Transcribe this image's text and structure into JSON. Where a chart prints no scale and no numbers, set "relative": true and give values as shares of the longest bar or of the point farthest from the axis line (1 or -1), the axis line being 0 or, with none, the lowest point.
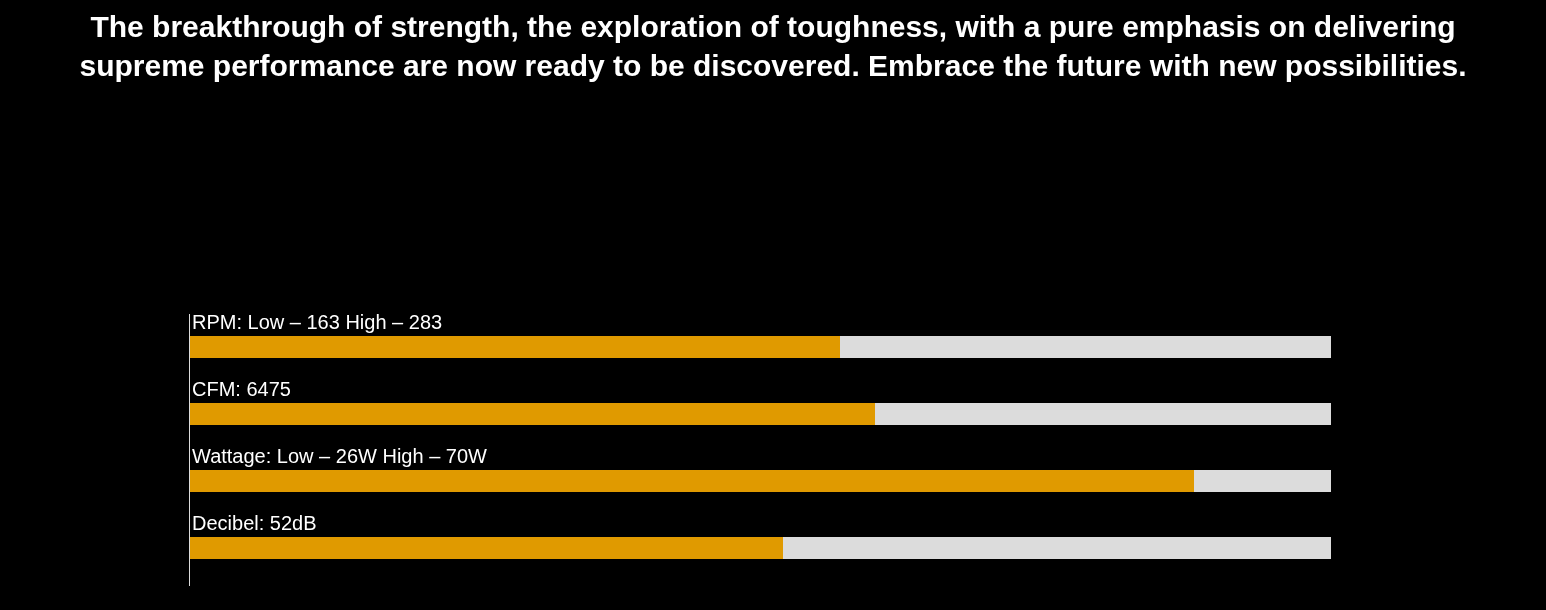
{
  "chart_data": {
    "type": "bar",
    "orientation": "horizontal",
    "stacked": true,
    "relative": true,
    "title": "The breakthrough of strength, the exploration of toughness, with a pure emphasis on delivering\nsupreme performance are now ready to be discovered. Embrace the future with new possibilities.",
    "categories": [
      "RPM: Low – 163 High – 283",
      "CFM: 6475",
      "Wattage: Low – 26W High – 70W",
      "Decibel: 52dB"
    ],
    "series": [
      {
        "color": "#e09a00",
        "values": [
          0.57,
          0.6,
          0.88,
          0.52
        ]
      },
      {
        "color": "#dcdcdc",
        "values": [
          0.43,
          0.4,
          0.12,
          0.48
        ]
      }
    ],
    "grid": false
  }
}
